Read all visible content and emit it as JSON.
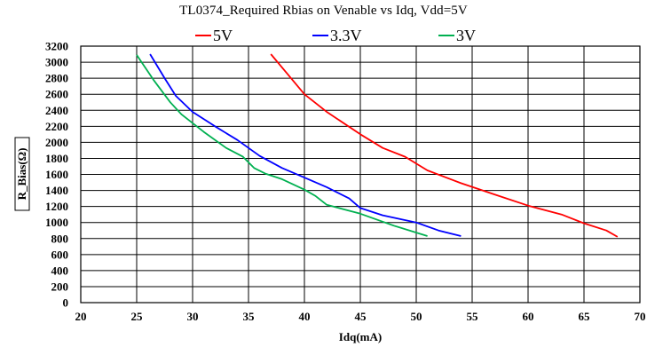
{
  "chart_data": {
    "type": "line",
    "title": "TL0374_Required Rbias on Venable vs Idq, Vdd=5V",
    "xlabel": "Idq(mA)",
    "ylabel": "R_Bias(Ω)",
    "xlim": [
      20,
      70
    ],
    "ylim": [
      0,
      3200
    ],
    "xticks": [
      20,
      25,
      30,
      35,
      40,
      45,
      50,
      55,
      60,
      65,
      70
    ],
    "yticks": [
      0,
      200,
      400,
      600,
      800,
      1000,
      1200,
      1400,
      1600,
      1800,
      2000,
      2200,
      2400,
      2600,
      2800,
      3000,
      3200
    ],
    "grid": true,
    "legend_position": "top",
    "series": [
      {
        "name": "5V",
        "color": "#ff0000",
        "points": [
          [
            37,
            3100
          ],
          [
            38.5,
            2850
          ],
          [
            40,
            2600
          ],
          [
            42,
            2380
          ],
          [
            45,
            2100
          ],
          [
            47,
            1930
          ],
          [
            49,
            1820
          ],
          [
            51,
            1650
          ],
          [
            54,
            1490
          ],
          [
            57,
            1350
          ],
          [
            60,
            1210
          ],
          [
            63,
            1100
          ],
          [
            65,
            990
          ],
          [
            67,
            900
          ],
          [
            68,
            820
          ]
        ]
      },
      {
        "name": "3.3V",
        "color": "#0000ff",
        "points": [
          [
            26.2,
            3100
          ],
          [
            27.5,
            2800
          ],
          [
            28.5,
            2580
          ],
          [
            30,
            2380
          ],
          [
            32,
            2200
          ],
          [
            34,
            2030
          ],
          [
            36,
            1830
          ],
          [
            38,
            1680
          ],
          [
            40,
            1560
          ],
          [
            42,
            1440
          ],
          [
            44,
            1300
          ],
          [
            45,
            1180
          ],
          [
            47,
            1090
          ],
          [
            50,
            1000
          ],
          [
            52,
            900
          ],
          [
            54,
            830
          ]
        ]
      },
      {
        "name": "3V",
        "color": "#00b050",
        "points": [
          [
            25,
            3090
          ],
          [
            26.5,
            2780
          ],
          [
            28,
            2500
          ],
          [
            29,
            2350
          ],
          [
            31,
            2130
          ],
          [
            33,
            1930
          ],
          [
            34.5,
            1820
          ],
          [
            35.5,
            1680
          ],
          [
            36.5,
            1610
          ],
          [
            38,
            1540
          ],
          [
            40,
            1410
          ],
          [
            41,
            1330
          ],
          [
            42,
            1220
          ],
          [
            45,
            1110
          ],
          [
            48,
            960
          ],
          [
            51,
            830
          ]
        ]
      }
    ]
  }
}
